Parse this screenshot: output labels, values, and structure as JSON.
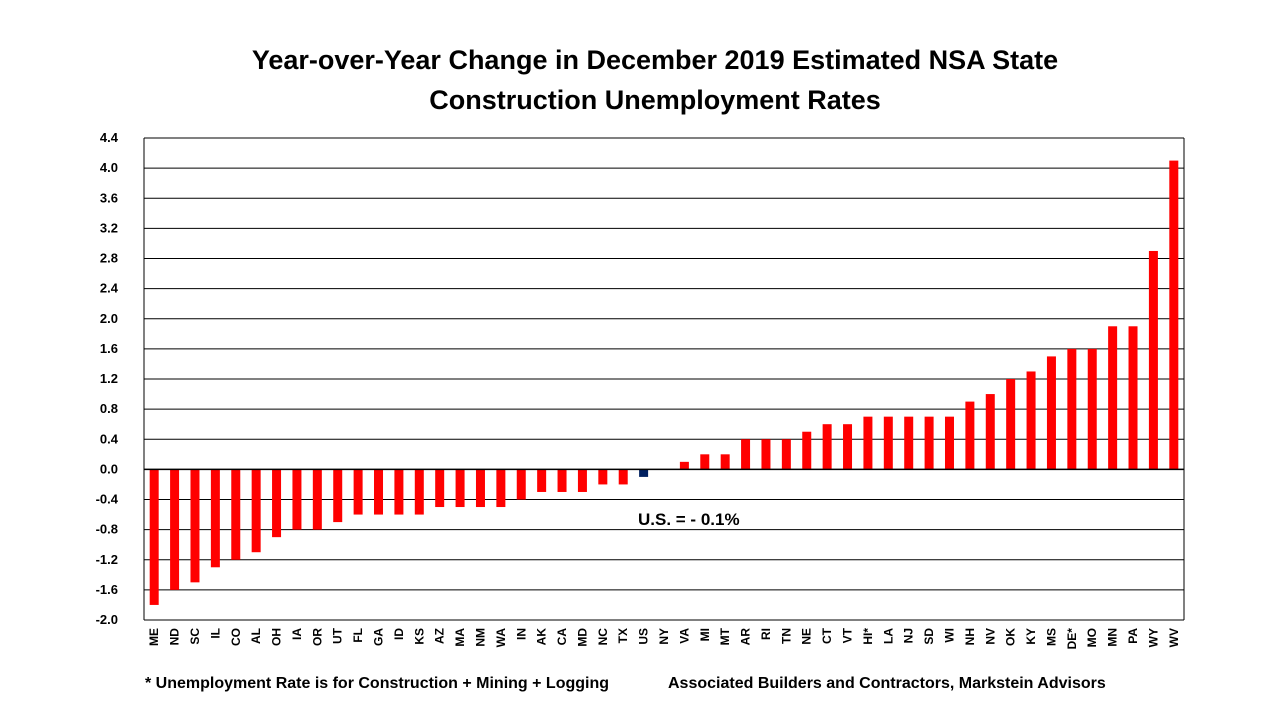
{
  "chart_data": {
    "type": "bar",
    "title_lines": [
      "Year-over-Year Change in December 2019 Estimated NSA State",
      "Construction Unemployment Rates"
    ],
    "xlabel": "",
    "ylabel": "",
    "ylim": [
      -2.0,
      4.4
    ],
    "ytick_step": 0.4,
    "grid": true,
    "categories": [
      "ME",
      "ND",
      "SC",
      "IL",
      "CO",
      "AL",
      "OH",
      "IA",
      "OR",
      "UT",
      "FL",
      "GA",
      "ID",
      "KS",
      "AZ",
      "MA",
      "NM",
      "WA",
      "IN",
      "AK",
      "CA",
      "MD",
      "NC",
      "TX",
      "US",
      "NY",
      "VA",
      "MI",
      "MT",
      "AR",
      "RI",
      "TN",
      "NE",
      "CT",
      "VT",
      "HI*",
      "LA",
      "NJ",
      "SD",
      "WI",
      "NH",
      "NV",
      "OK",
      "KY",
      "MS",
      "DE*",
      "MO",
      "MN",
      "PA",
      "WY",
      "WV"
    ],
    "values": [
      -1.8,
      -1.6,
      -1.5,
      -1.3,
      -1.2,
      -1.1,
      -0.9,
      -0.8,
      -0.8,
      -0.7,
      -0.6,
      -0.6,
      -0.6,
      -0.6,
      -0.5,
      -0.5,
      -0.5,
      -0.5,
      -0.4,
      -0.3,
      -0.3,
      -0.3,
      -0.2,
      -0.2,
      -0.1,
      0.0,
      0.1,
      0.2,
      0.2,
      0.4,
      0.4,
      0.4,
      0.5,
      0.6,
      0.6,
      0.7,
      0.7,
      0.7,
      0.7,
      0.7,
      0.9,
      1.0,
      1.2,
      1.3,
      1.5,
      1.6,
      1.6,
      1.9,
      1.9,
      2.9,
      4.1
    ],
    "highlight_category": "US",
    "annotation": "U.S. = - 0.1%"
  },
  "colors": {
    "bar": "#ff0000",
    "highlight": "#002060",
    "grid": "#000000"
  },
  "footnotes": {
    "left": "* Unemployment Rate is for Construction + Mining + Logging",
    "right": "Associated Builders and Contractors, Markstein Advisors"
  }
}
